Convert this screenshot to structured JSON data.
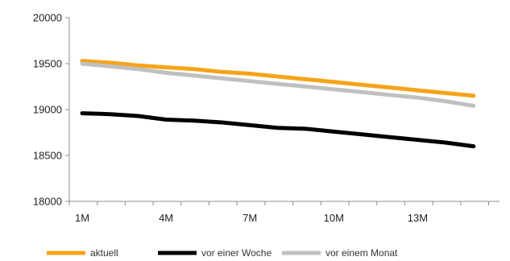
{
  "chart_data": {
    "type": "line",
    "x": [
      "1M",
      "2M",
      "3M",
      "4M",
      "5M",
      "6M",
      "7M",
      "8M",
      "9M",
      "10M",
      "11M",
      "12M",
      "13M",
      "14M",
      "15M"
    ],
    "x_tick_labels": [
      "1M",
      "4M",
      "7M",
      "10M",
      "13M"
    ],
    "y_tick_labels": [
      "20000",
      "19500",
      "19000",
      "18500",
      "18000"
    ],
    "ylim": [
      18000,
      20000
    ],
    "y_ticks": [
      18000,
      18500,
      19000,
      19500,
      20000
    ],
    "grid": false,
    "legend_position": "bottom",
    "series": [
      {
        "name": "aktuell",
        "color": "#f5a31a",
        "values": [
          19530,
          19510,
          19480,
          19460,
          19440,
          19410,
          19390,
          19360,
          19330,
          19300,
          19270,
          19240,
          19210,
          19180,
          19150
        ]
      },
      {
        "name": "vor einer Woche",
        "color": "#000000",
        "values": [
          18960,
          18950,
          18930,
          18890,
          18880,
          18860,
          18830,
          18800,
          18790,
          18760,
          18730,
          18700,
          18670,
          18640,
          18600
        ]
      },
      {
        "name": "vor einem Monat",
        "color": "#c0c0c0",
        "values": [
          19500,
          19470,
          19440,
          19400,
          19370,
          19340,
          19310,
          19280,
          19250,
          19220,
          19190,
          19160,
          19130,
          19090,
          19040
        ]
      }
    ]
  }
}
